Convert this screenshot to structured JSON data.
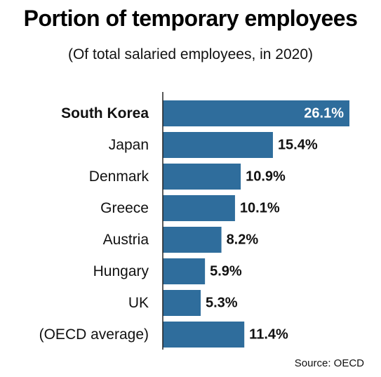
{
  "colors": {
    "bar": "#2f6d9c",
    "axis": "#222222",
    "text": "#111111"
  },
  "chart_data": {
    "type": "bar",
    "orientation": "horizontal",
    "title": "Portion of temporary employees",
    "subtitle": "(Of total salaried employees, in 2020)",
    "source": "Source: OECD",
    "categories": [
      "South Korea",
      "Japan",
      "Denmark",
      "Greece",
      "Austria",
      "Hungary",
      "UK",
      "(OECD average)"
    ],
    "values": [
      26.1,
      15.4,
      10.9,
      10.1,
      8.2,
      5.9,
      5.3,
      11.4
    ],
    "value_labels": [
      "26.1%",
      "15.4%",
      "10.9%",
      "10.1%",
      "8.2%",
      "5.9%",
      "5.3%",
      "11.4%"
    ],
    "highlight": "South Korea",
    "xlim": [
      0,
      26.1
    ],
    "grid": false,
    "legend": "none"
  }
}
